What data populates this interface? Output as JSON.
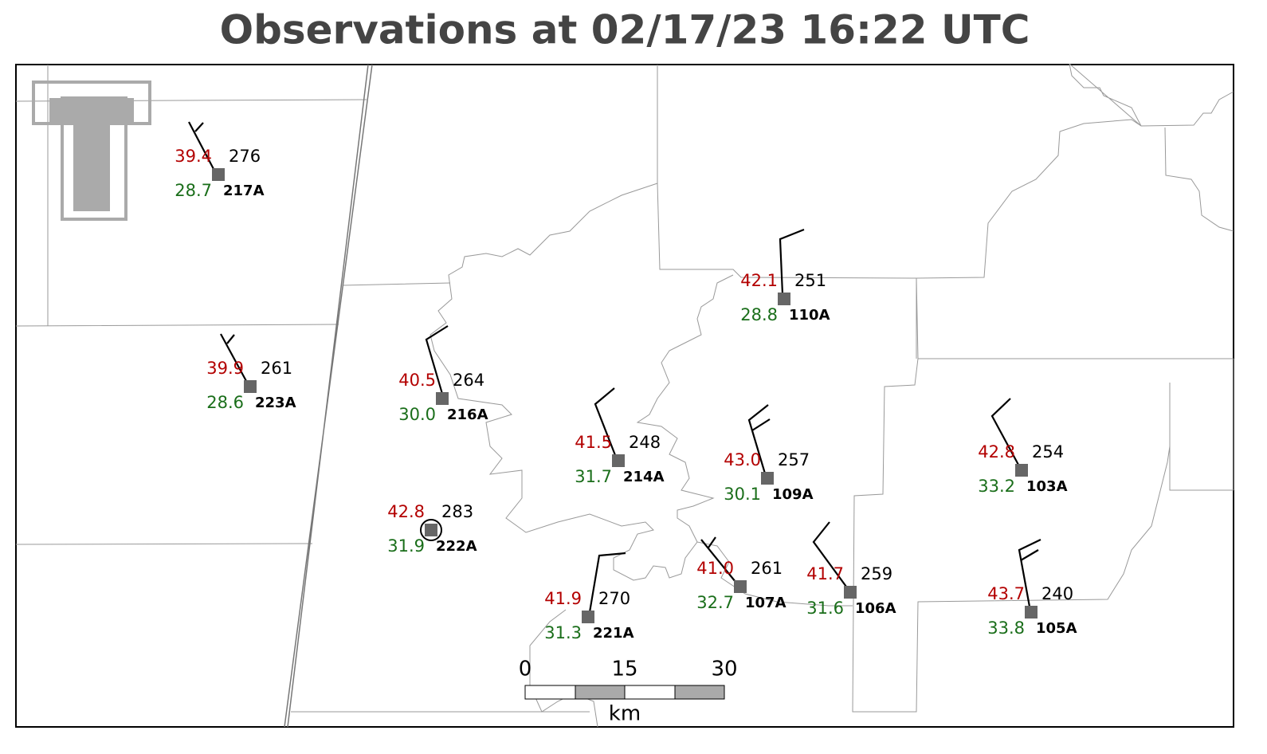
{
  "title": "Observations at 02/17/23 16:22 UTC",
  "stations": [
    {
      "id": "217A",
      "temperature": "39.4",
      "dewpoint": "28.7",
      "pressure": "276"
    },
    {
      "id": "223A",
      "temperature": "39.9",
      "dewpoint": "28.6",
      "pressure": "261"
    },
    {
      "id": "216A",
      "temperature": "40.5",
      "dewpoint": "30.0",
      "pressure": "264"
    },
    {
      "id": "214A",
      "temperature": "41.5",
      "dewpoint": "31.7",
      "pressure": "248"
    },
    {
      "id": "110A",
      "temperature": "42.1",
      "dewpoint": "28.8",
      "pressure": "251"
    },
    {
      "id": "109A",
      "temperature": "43.0",
      "dewpoint": "30.1",
      "pressure": "257"
    },
    {
      "id": "222A",
      "temperature": "42.8",
      "dewpoint": "31.9",
      "pressure": "283"
    },
    {
      "id": "221A",
      "temperature": "41.9",
      "dewpoint": "31.3",
      "pressure": "270"
    },
    {
      "id": "107A",
      "temperature": "41.0",
      "dewpoint": "32.7",
      "pressure": "261"
    },
    {
      "id": "106A",
      "temperature": "41.7",
      "dewpoint": "31.6",
      "pressure": "259"
    },
    {
      "id": "103A",
      "temperature": "42.8",
      "dewpoint": "33.2",
      "pressure": "254"
    },
    {
      "id": "105A",
      "temperature": "43.7",
      "dewpoint": "33.8",
      "pressure": "240"
    }
  ],
  "scale_bar": {
    "ticks": [
      "0",
      "15",
      "30"
    ],
    "unit": "km"
  }
}
